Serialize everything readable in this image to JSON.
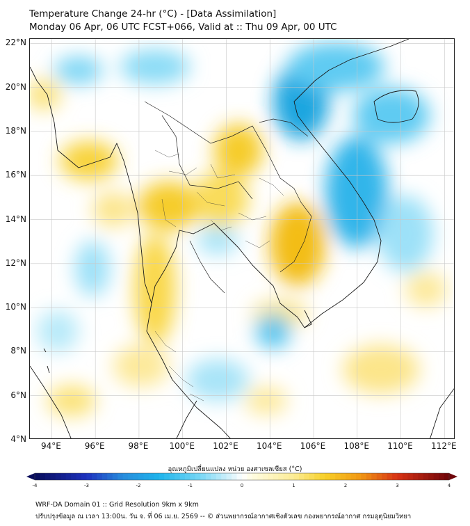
{
  "header": {
    "title_line1": "Temperature Change 24-hr (°C) - [Data Assimilation]",
    "title_line2": "Monday 06 Apr, 06 UTC FCST+066, Valid at :: Thu 09 Apr, 00 UTC"
  },
  "map": {
    "lon_range": [
      93,
      112.5
    ],
    "lat_range": [
      4,
      22.2
    ],
    "lat_labels": [
      "22°N",
      "20°N",
      "18°N",
      "16°N",
      "14°N",
      "12°N",
      "10°N",
      "8°N",
      "6°N",
      "4°N"
    ],
    "lat_values": [
      22,
      20,
      18,
      16,
      14,
      12,
      10,
      8,
      6,
      4
    ],
    "lon_labels": [
      "94°E",
      "96°E",
      "98°E",
      "100°E",
      "102°E",
      "104°E",
      "106°E",
      "108°E",
      "110°E",
      "112°E"
    ],
    "lon_values": [
      94,
      96,
      98,
      100,
      102,
      104,
      106,
      108,
      110,
      112
    ]
  },
  "colorbar": {
    "title": "อุณหภูมิเปลี่ยนแปลง หน่วย องศาเซลเซียส (°C)",
    "tick_labels": [
      "-4",
      "-3",
      "-2",
      "-1",
      "0",
      "1",
      "2",
      "3",
      "4"
    ],
    "tick_values": [
      -4,
      -3,
      -2,
      -1,
      0,
      1,
      2,
      3,
      4
    ],
    "range": [
      -4,
      4
    ]
  },
  "footer": {
    "line1": "WRF-DA Domain 01 :: Grid Resolution 9km x 9km",
    "line2": "ปรับปรุงข้อมูล ณ เวลา 13:00น. วัน จ. ที่ 06 เม.ย. 2569 -- © ส่วนพยากรณ์อากาศเชิงตัวเลข กองพยากรณ์อากาศ กรมอุตุนิยมวิทยา"
  },
  "colors": {
    "cold_strong": "#1fa6e0",
    "cold_light": "#bfe9fb",
    "neutral": "#ffffff",
    "warm_light": "#fdf1b0",
    "warm_strong": "#f5c518",
    "coastline": "#1a1a1a",
    "grid": "#c8c8c8"
  }
}
